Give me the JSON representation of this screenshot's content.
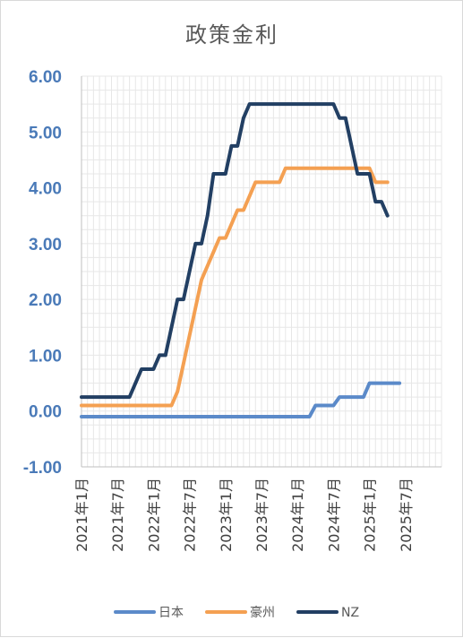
{
  "chart_data": {
    "type": "line",
    "title": "政策金利",
    "xlabel": "",
    "ylabel": "",
    "ylim": [
      -1.0,
      6.0
    ],
    "y_ticks": [
      "6.00",
      "5.00",
      "4.00",
      "3.00",
      "2.00",
      "1.00",
      "0.00",
      "-1.00"
    ],
    "x_tick_labels": [
      "2021年1月",
      "2021年7月",
      "2022年1月",
      "2022年7月",
      "2023年1月",
      "2023年7月",
      "2024年1月",
      "2024年7月",
      "2025年1月",
      "2025年7月"
    ],
    "grid": true,
    "legend_position": "bottom",
    "series": [
      {
        "name": "日本",
        "color": "#5b8ac9",
        "points": [
          [
            "2021-01",
            -0.1
          ],
          [
            "2024-03",
            -0.1
          ],
          [
            "2024-04",
            0.1
          ],
          [
            "2024-07",
            0.1
          ],
          [
            "2024-08",
            0.25
          ],
          [
            "2024-12",
            0.25
          ],
          [
            "2025-01",
            0.5
          ],
          [
            "2025-06",
            0.5
          ]
        ]
      },
      {
        "name": "豪州",
        "color": "#f4a052",
        "points": [
          [
            "2021-01",
            0.1
          ],
          [
            "2022-04",
            0.1
          ],
          [
            "2022-05",
            0.35
          ],
          [
            "2022-06",
            0.85
          ],
          [
            "2022-07",
            1.35
          ],
          [
            "2022-08",
            1.85
          ],
          [
            "2022-09",
            2.35
          ],
          [
            "2022-10",
            2.6
          ],
          [
            "2022-11",
            2.85
          ],
          [
            "2022-12",
            3.1
          ],
          [
            "2023-01",
            3.1
          ],
          [
            "2023-02",
            3.35
          ],
          [
            "2023-03",
            3.6
          ],
          [
            "2023-04",
            3.6
          ],
          [
            "2023-05",
            3.85
          ],
          [
            "2023-06",
            4.1
          ],
          [
            "2023-10",
            4.1
          ],
          [
            "2023-11",
            4.35
          ],
          [
            "2025-01",
            4.35
          ],
          [
            "2025-02",
            4.1
          ],
          [
            "2025-04",
            4.1
          ]
        ]
      },
      {
        "name": "NZ",
        "color": "#223f63",
        "points": [
          [
            "2021-01",
            0.25
          ],
          [
            "2021-09",
            0.25
          ],
          [
            "2021-10",
            0.5
          ],
          [
            "2021-11",
            0.75
          ],
          [
            "2022-01",
            0.75
          ],
          [
            "2022-02",
            1.0
          ],
          [
            "2022-03",
            1.0
          ],
          [
            "2022-04",
            1.5
          ],
          [
            "2022-05",
            2.0
          ],
          [
            "2022-06",
            2.0
          ],
          [
            "2022-07",
            2.5
          ],
          [
            "2022-08",
            3.0
          ],
          [
            "2022-09",
            3.0
          ],
          [
            "2022-10",
            3.5
          ],
          [
            "2022-11",
            4.25
          ],
          [
            "2023-01",
            4.25
          ],
          [
            "2023-02",
            4.75
          ],
          [
            "2023-03",
            4.75
          ],
          [
            "2023-04",
            5.25
          ],
          [
            "2023-05",
            5.5
          ],
          [
            "2024-07",
            5.5
          ],
          [
            "2024-08",
            5.25
          ],
          [
            "2024-09",
            5.25
          ],
          [
            "2024-10",
            4.75
          ],
          [
            "2024-11",
            4.25
          ],
          [
            "2025-01",
            4.25
          ],
          [
            "2025-02",
            3.75
          ],
          [
            "2025-03",
            3.75
          ],
          [
            "2025-04",
            3.5
          ]
        ]
      }
    ]
  }
}
